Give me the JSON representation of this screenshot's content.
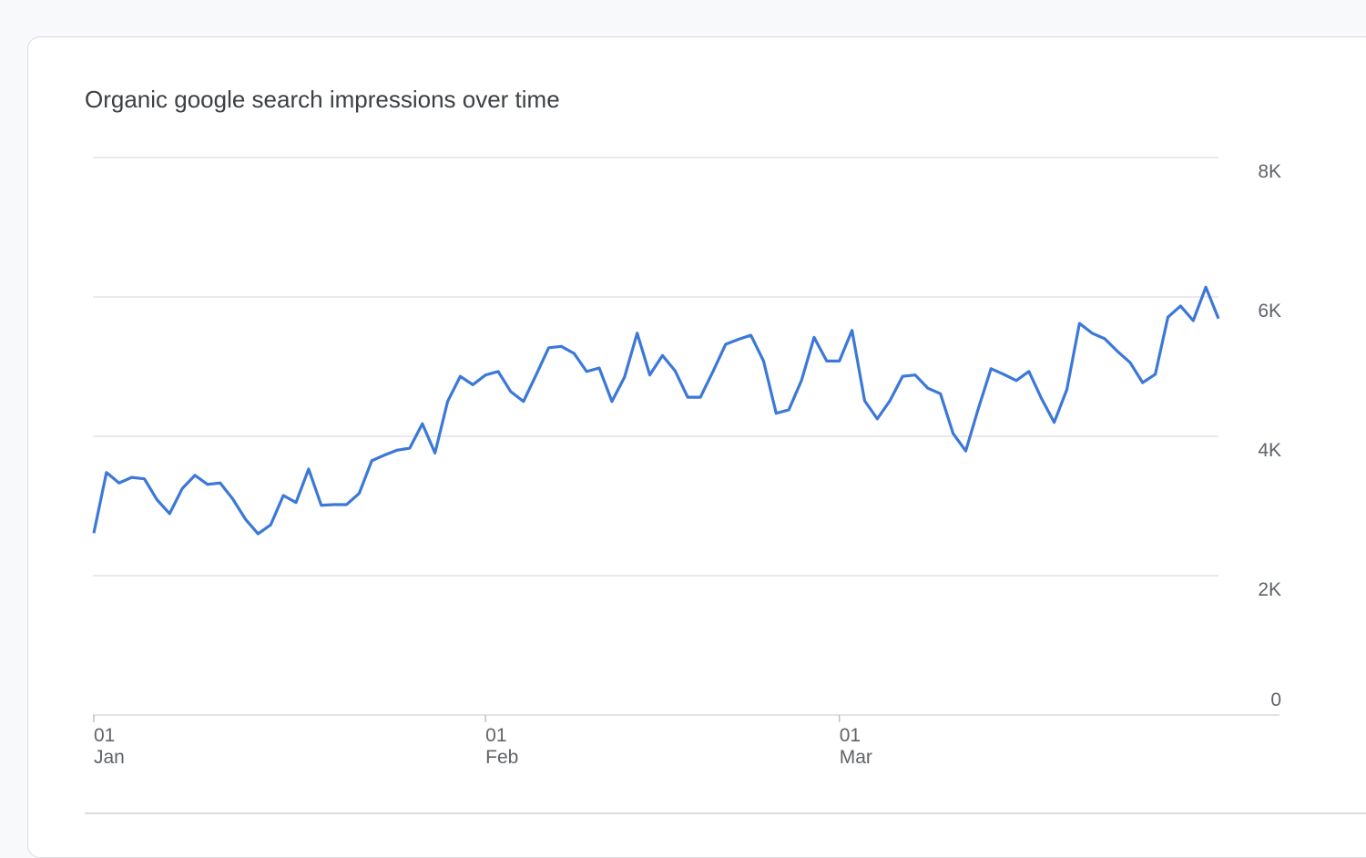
{
  "chart_data": {
    "type": "line",
    "title": "Organic google search impressions over time",
    "categories": [
      "01 Jan",
      null,
      null,
      null,
      null,
      null,
      null,
      null,
      null,
      null,
      null,
      null,
      null,
      null,
      null,
      null,
      null,
      null,
      null,
      null,
      null,
      null,
      null,
      null,
      null,
      null,
      null,
      null,
      null,
      null,
      null,
      "01 Feb",
      null,
      null,
      null,
      null,
      null,
      null,
      null,
      null,
      null,
      null,
      null,
      null,
      null,
      null,
      null,
      null,
      null,
      null,
      null,
      null,
      null,
      null,
      null,
      null,
      null,
      null,
      null,
      "01 Mar",
      null,
      null,
      null,
      null,
      null,
      null,
      null,
      null,
      null,
      null,
      null,
      null,
      null,
      null,
      null,
      null,
      null,
      null,
      null,
      null,
      null,
      null,
      null,
      null,
      null,
      null,
      null,
      null,
      null,
      null
    ],
    "series": [
      {
        "name": "Impressions",
        "color": "#3b78d8",
        "values": [
          2610,
          3480,
          3330,
          3410,
          3390,
          3090,
          2890,
          3250,
          3440,
          3310,
          3330,
          3100,
          2810,
          2600,
          2730,
          3150,
          3050,
          3530,
          3010,
          3020,
          3020,
          3180,
          3650,
          3730,
          3800,
          3830,
          4180,
          3760,
          4500,
          4860,
          4740,
          4880,
          4930,
          4640,
          4500,
          4880,
          5270,
          5290,
          5190,
          4930,
          4980,
          4500,
          4850,
          5480,
          4880,
          5160,
          4940,
          4560,
          4560,
          4930,
          5320,
          5390,
          5450,
          5080,
          4330,
          4380,
          4800,
          5420,
          5080,
          5080,
          5520,
          4510,
          4250,
          4510,
          4860,
          4880,
          4690,
          4610,
          4040,
          3790,
          4400,
          4970,
          4890,
          4800,
          4930,
          4540,
          4200,
          4670,
          5620,
          5480,
          5400,
          5220,
          5060,
          4770,
          4890,
          5710,
          5870,
          5660,
          6140,
          5690
        ]
      }
    ],
    "ylim": [
      0,
      8000
    ],
    "yticks": [
      0,
      {
        "value": 2000,
        "label": "2K"
      },
      {
        "value": 4000,
        "label": "4K"
      },
      {
        "value": 6000,
        "label": "6K"
      },
      {
        "value": 8000,
        "label": "8K"
      }
    ],
    "y_axis_side": "right",
    "grid": true
  }
}
